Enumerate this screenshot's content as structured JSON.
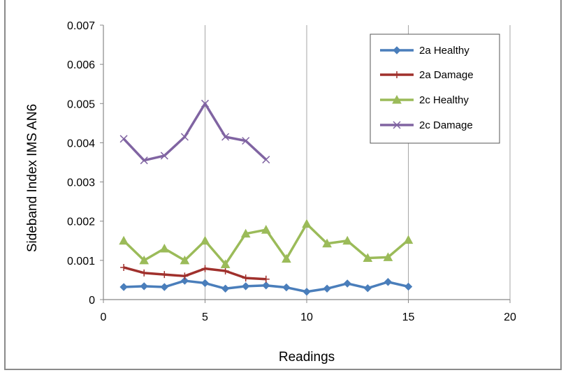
{
  "chart_data": {
    "type": "line",
    "title": "",
    "xlabel": "Readings",
    "ylabel": "Sideband Index IMS AN6",
    "xlim": [
      0,
      20
    ],
    "ylim": [
      0,
      0.007
    ],
    "xticks": [
      "0",
      "5",
      "10",
      "15",
      "20"
    ],
    "yticks": [
      "0",
      "0.001",
      "0.002",
      "0.003",
      "0.004",
      "0.005",
      "0.006",
      "0.007"
    ],
    "grid": "vertical",
    "legend_position": "top-right",
    "series": [
      {
        "name": "2a Healthy",
        "color": "#4a7ebb",
        "marker": "diamond",
        "x": [
          1,
          2,
          3,
          4,
          5,
          6,
          7,
          8,
          9,
          10,
          11,
          12,
          13,
          14,
          15
        ],
        "values": [
          0.00032,
          0.00034,
          0.00032,
          0.00048,
          0.00042,
          0.00028,
          0.00034,
          0.00036,
          0.00031,
          0.0002,
          0.00028,
          0.00041,
          0.00029,
          0.00045,
          0.00033
        ]
      },
      {
        "name": "2a Damage",
        "color": "#a0302c",
        "marker": "plus",
        "x": [
          1,
          2,
          3,
          4,
          5,
          6,
          7,
          8
        ],
        "values": [
          0.00082,
          0.00068,
          0.00064,
          0.0006,
          0.00079,
          0.00073,
          0.00055,
          0.00052
        ]
      },
      {
        "name": "2c Healthy",
        "color": "#9bbb59",
        "marker": "triangle",
        "x": [
          1,
          2,
          3,
          4,
          5,
          6,
          7,
          8,
          9,
          10,
          11,
          12,
          13,
          14,
          15
        ],
        "values": [
          0.0015,
          0.001,
          0.0013,
          0.001,
          0.0015,
          0.0009,
          0.00168,
          0.00178,
          0.00104,
          0.00193,
          0.00143,
          0.0015,
          0.00106,
          0.00108,
          0.00152
        ]
      },
      {
        "name": "2c Damage",
        "color": "#8064a2",
        "marker": "x",
        "x": [
          1,
          2,
          3,
          4,
          5,
          6,
          7,
          8
        ],
        "values": [
          0.0041,
          0.00355,
          0.00367,
          0.00415,
          0.005,
          0.00415,
          0.00405,
          0.00357
        ]
      }
    ]
  }
}
